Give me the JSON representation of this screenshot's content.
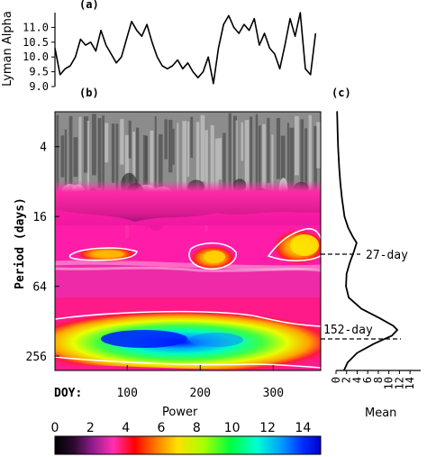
{
  "chart_data": [
    {
      "panel": "(a)",
      "type": "line",
      "ylabel": "Lyman Alpha",
      "ylim": [
        9.0,
        11.5
      ],
      "yticks": [
        "9.0",
        "9.5",
        "10.0",
        "10.5",
        "11.0"
      ],
      "x_range": [
        1,
        365
      ],
      "series": [
        {
          "x": [
            1,
            8,
            15,
            22,
            29,
            36,
            43,
            50,
            57,
            64,
            71,
            78,
            85,
            92,
            99,
            106,
            113,
            120,
            127,
            134,
            141,
            148,
            155,
            162,
            169,
            176,
            183,
            190,
            197,
            204,
            211,
            218,
            225,
            232,
            239,
            246,
            253,
            260,
            267,
            274,
            281,
            288,
            295,
            302,
            309,
            316,
            323,
            330,
            337,
            344,
            351,
            358
          ],
          "y": [
            10.3,
            9.4,
            9.6,
            9.7,
            10.0,
            10.6,
            10.4,
            10.5,
            10.2,
            10.9,
            10.4,
            10.1,
            9.8,
            10.0,
            10.6,
            11.2,
            10.9,
            10.7,
            11.1,
            10.5,
            10.0,
            9.7,
            9.6,
            9.7,
            9.9,
            9.6,
            9.8,
            9.5,
            9.3,
            9.5,
            10.0,
            9.1,
            10.3,
            11.1,
            11.4,
            11.0,
            10.8,
            11.1,
            10.9,
            11.3,
            10.4,
            10.8,
            10.3,
            10.1,
            9.6,
            10.4,
            11.3,
            10.7,
            11.5,
            9.6,
            9.4,
            10.8
          ]
        }
      ]
    },
    {
      "panel": "(b)",
      "type": "heatmap",
      "ylabel": "Period (days)",
      "yscale": "log2",
      "yticks": [
        "4",
        "16",
        "64",
        "256"
      ],
      "xlabel_prefix": "DOY:",
      "xticks": [
        "100",
        "200",
        "300"
      ],
      "x_range": [
        1,
        365
      ],
      "y_range": [
        2,
        340
      ],
      "colorbar": {
        "label": "Power",
        "ticks": [
          "0",
          "2",
          "4",
          "6",
          "8",
          "10",
          "12",
          "14"
        ],
        "range": [
          0,
          15
        ]
      },
      "annotations": [
        "27-day",
        "152-day"
      ]
    },
    {
      "panel": "(c)",
      "type": "line",
      "xlabel": "Mean",
      "xticks": [
        "0",
        "2",
        "4",
        "6",
        "8",
        "10",
        "12",
        "14"
      ],
      "xlim": [
        0,
        15
      ],
      "profile": {
        "period": [
          2,
          3,
          4,
          6,
          8,
          11,
          16,
          20,
          24,
          27,
          32,
          40,
          50,
          64,
          80,
          100,
          120,
          140,
          152,
          170,
          200,
          240,
          290,
          340
        ],
        "mean": [
          0.2,
          0.3,
          0.4,
          0.6,
          0.8,
          1.1,
          1.6,
          2.3,
          3.2,
          3.9,
          3.4,
          2.6,
          2.0,
          1.9,
          2.4,
          4.8,
          8.2,
          10.8,
          11.6,
          10.6,
          7.2,
          4.0,
          2.2,
          1.5
        ]
      }
    }
  ],
  "labels": {
    "panel_a": "(a)",
    "panel_b": "(b)",
    "panel_c": "(c)",
    "ylabel_a": "Lyman Alpha",
    "ylabel_b": "Period (days)",
    "doy": "DOY:",
    "power": "Power",
    "mean": "Mean",
    "ann_27": "27-day",
    "ann_152": "152-day"
  }
}
